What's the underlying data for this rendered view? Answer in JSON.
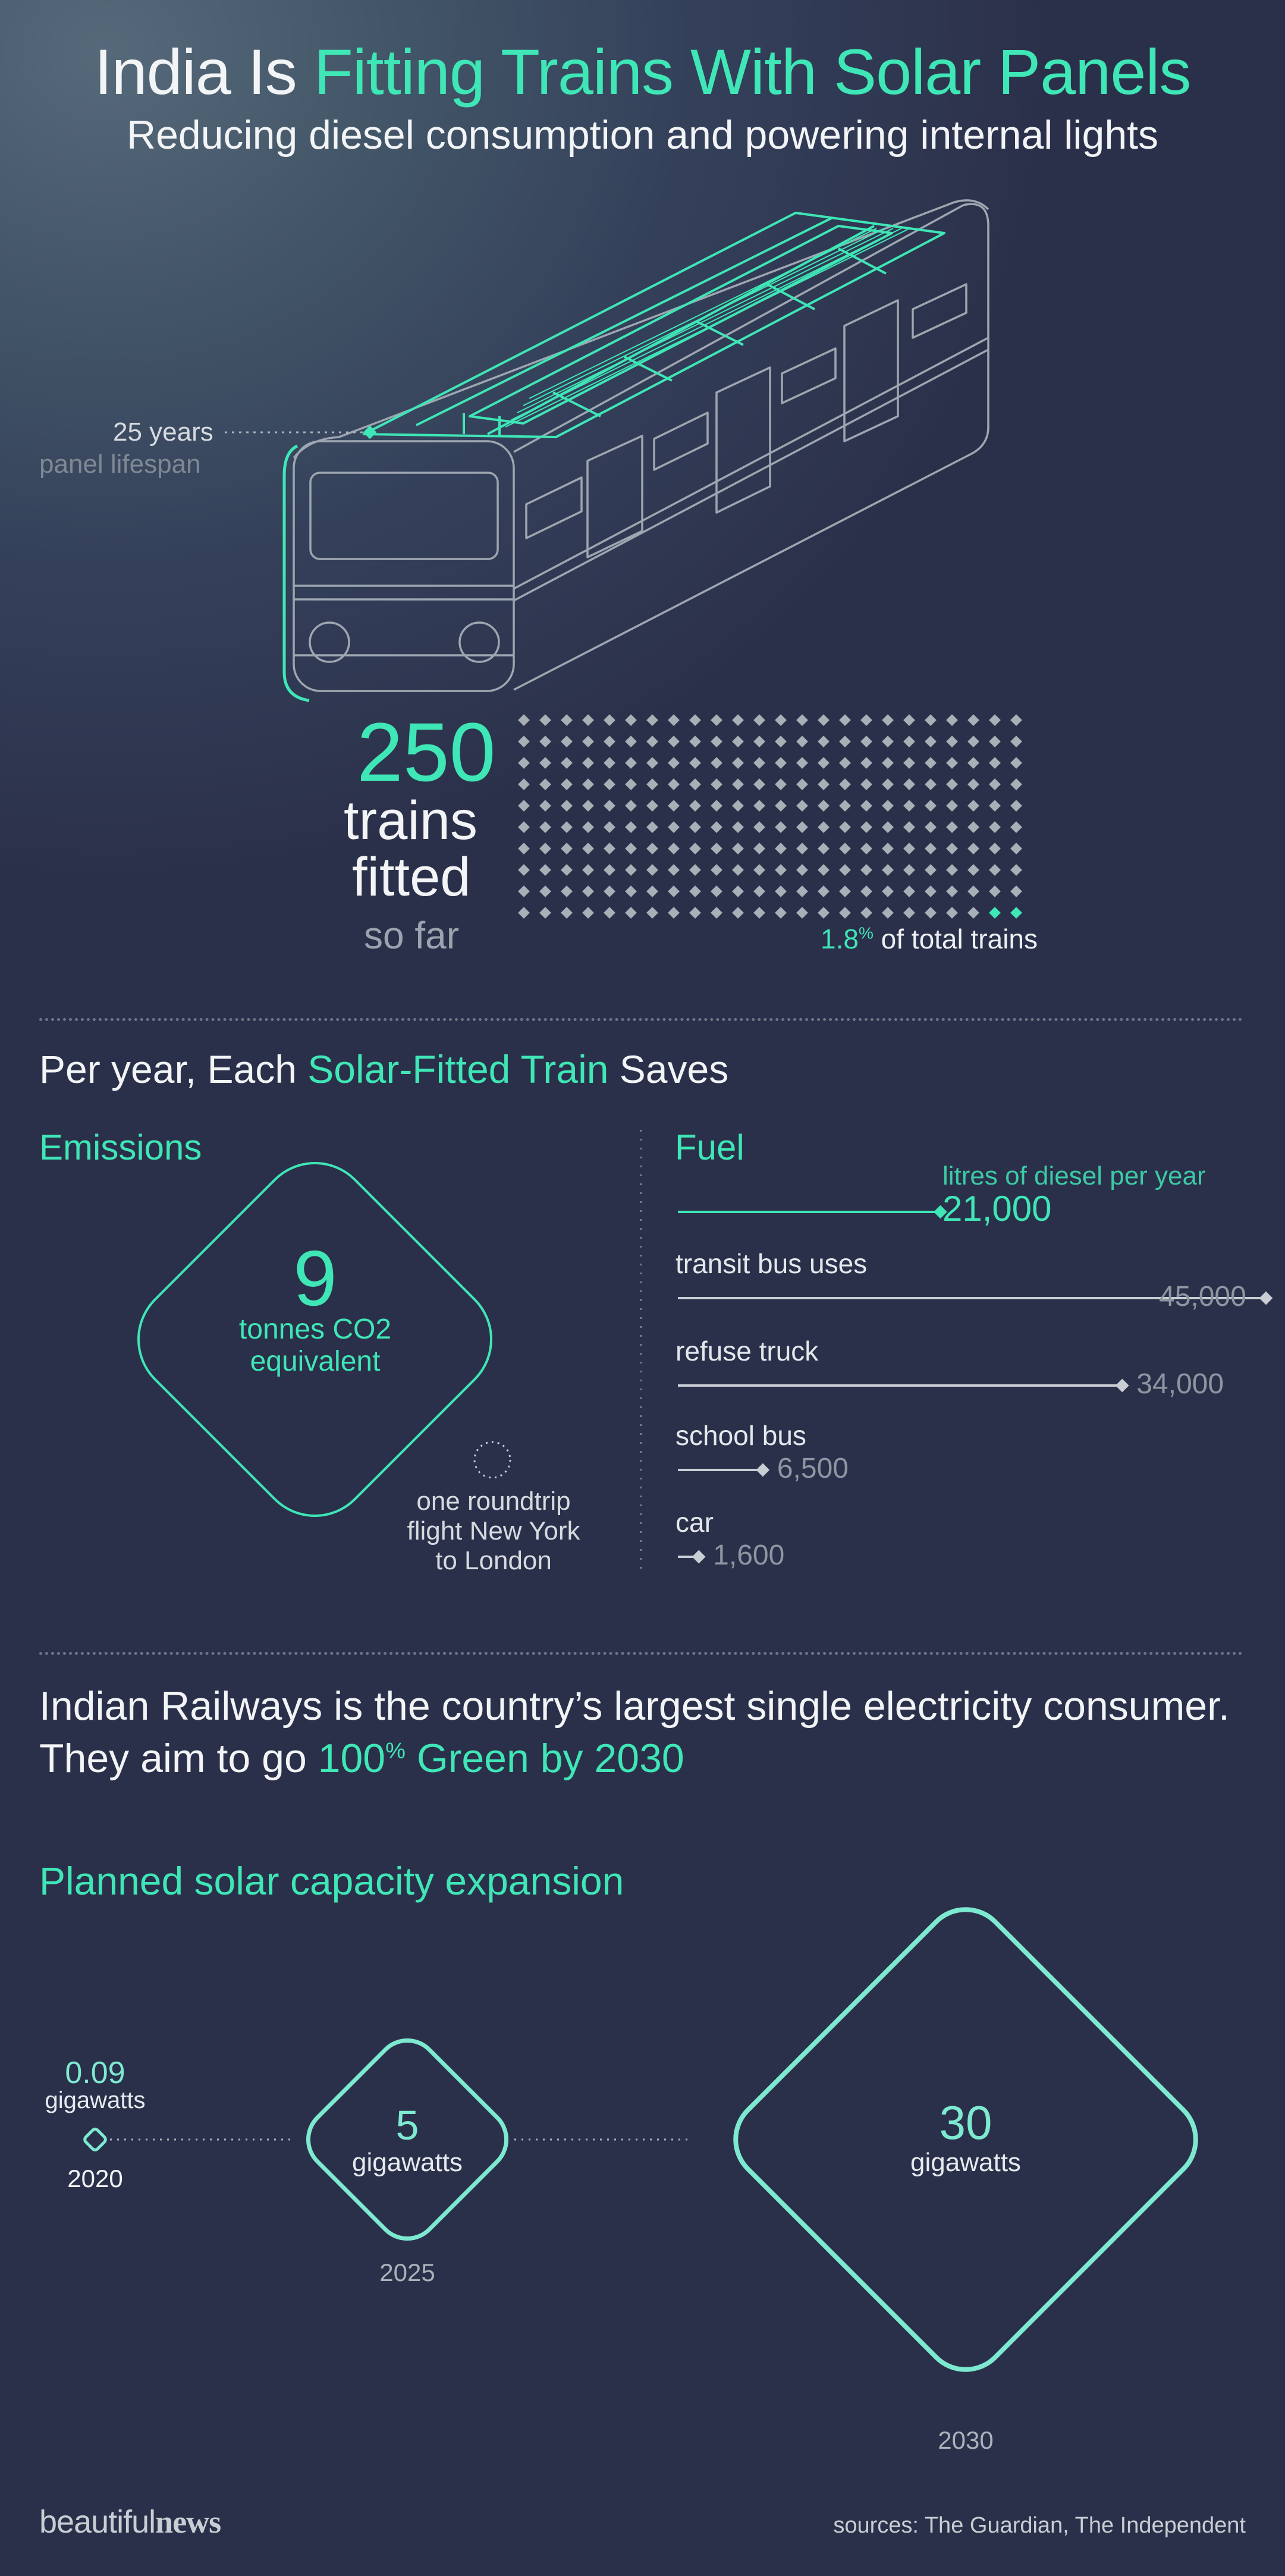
{
  "colors": {
    "accent": "#3fe6b6",
    "text": "#f2f4f6",
    "muted": "#9aa3ae",
    "bg_top": "#4f6273",
    "bg_bottom": "#2b304a"
  },
  "header": {
    "title_part1": "India Is ",
    "title_part2": "Fitting Trains With Solar Panels",
    "subtitle": "Reducing diesel consumption and powering internal lights"
  },
  "train": {
    "lifespan_value": "25 years",
    "lifespan_label": "panel lifespan",
    "fitted_number": "250",
    "fitted_line1": "trains",
    "fitted_line2": "fitted",
    "fitted_line3": "so far",
    "share_value": "1.8",
    "share_unit": "%",
    "share_label": " of total trains",
    "share_fraction": 0.018,
    "icon": "train-icon"
  },
  "savings": {
    "heading_part1": "Per year, Each ",
    "heading_part2": "Solar-Fitted Train",
    "heading_part3": " Saves",
    "emissions": {
      "label": "Emissions",
      "value": "9",
      "unit_line1": "tonnes CO2",
      "unit_line2": "equivalent",
      "flight_line1": "one roundtrip",
      "flight_line2": "flight New York",
      "flight_line3": "to London"
    },
    "fuel": {
      "label": "Fuel",
      "train_caption": "litres of diesel per year",
      "train_value": "21,000",
      "items": [
        {
          "label": "transit bus uses",
          "value": "45,000",
          "amount": 45000
        },
        {
          "label": "refuse truck",
          "value": "34,000",
          "amount": 34000
        },
        {
          "label": "school bus",
          "value": "6,500",
          "amount": 6500
        },
        {
          "label": "car",
          "value": "1,600",
          "amount": 1600
        }
      ],
      "train_amount": 21000
    }
  },
  "railways": {
    "line1": "Indian Railways is the country’s largest single electricity consumer.",
    "line2_part1": "They aim to go ",
    "line2_highlight": "100",
    "line2_unit": "%",
    "line2_highlight2": " Green",
    "line2_part2": " by 2030"
  },
  "capacity": {
    "heading": "Planned solar capacity expansion",
    "points": [
      {
        "value": "0.09",
        "unit": "gigawatts",
        "year": "2020"
      },
      {
        "value": "5",
        "unit": "gigawatts",
        "year": "2025"
      },
      {
        "value": "30",
        "unit": "gigawatts",
        "year": "2030"
      }
    ]
  },
  "footer": {
    "brand_part1": "beautiful",
    "brand_part2": "news",
    "sources": "sources: The Guardian, The Independent"
  }
}
